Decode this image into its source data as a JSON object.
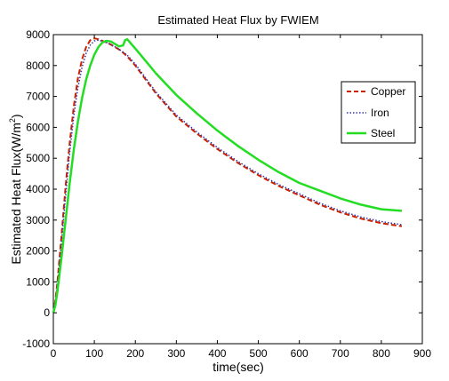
{
  "chart_data": {
    "type": "line",
    "title": "Estimated Heat Flux by FWIEM",
    "xlabel": "time(sec)",
    "ylabel": "Estimated Heat Flux(W/m",
    "ylabel_superscript": "2",
    "ylabel_suffix": ")",
    "xlim": [
      0,
      900
    ],
    "ylim": [
      -1000,
      9000
    ],
    "xticks": [
      "0",
      "100",
      "200",
      "300",
      "400",
      "500",
      "600",
      "700",
      "800",
      "900"
    ],
    "yticks": [
      "-1000",
      "0",
      "1000",
      "2000",
      "3000",
      "4000",
      "5000",
      "6000",
      "7000",
      "8000",
      "9000"
    ],
    "grid": false,
    "legend_position": "top-right",
    "series": [
      {
        "name": "Copper",
        "color": "#cc2200",
        "style": "dashed",
        "x": [
          0,
          5,
          10,
          20,
          30,
          40,
          50,
          60,
          70,
          80,
          90,
          100,
          110,
          120,
          130,
          140,
          150,
          160,
          170,
          180,
          200,
          250,
          300,
          350,
          400,
          450,
          500,
          550,
          600,
          650,
          700,
          750,
          800,
          850
        ],
        "y": [
          0,
          400,
          1000,
          2500,
          4100,
          5500,
          6700,
          7600,
          8200,
          8600,
          8820,
          8880,
          8850,
          8800,
          8740,
          8680,
          8600,
          8520,
          8420,
          8300,
          8000,
          7100,
          6350,
          5800,
          5300,
          4850,
          4450,
          4100,
          3800,
          3500,
          3250,
          3050,
          2900,
          2800
        ]
      },
      {
        "name": "Iron",
        "color": "#3333aa",
        "style": "dotted",
        "x": [
          0,
          5,
          10,
          20,
          30,
          40,
          50,
          60,
          70,
          80,
          90,
          100,
          110,
          120,
          130,
          140,
          150,
          160,
          170,
          180,
          200,
          250,
          300,
          350,
          400,
          450,
          500,
          550,
          600,
          650,
          700,
          750,
          800,
          850
        ],
        "y": [
          0,
          350,
          900,
          2300,
          3800,
          5200,
          6400,
          7300,
          7950,
          8400,
          8660,
          8800,
          8820,
          8790,
          8740,
          8680,
          8610,
          8530,
          8440,
          8340,
          8050,
          7150,
          6400,
          5850,
          5350,
          4900,
          4500,
          4150,
          3850,
          3550,
          3300,
          3100,
          2950,
          2850
        ]
      },
      {
        "name": "Steel",
        "color": "#22dd22",
        "style": "solid",
        "x": [
          0,
          5,
          10,
          20,
          30,
          40,
          50,
          60,
          70,
          80,
          90,
          100,
          110,
          120,
          130,
          140,
          150,
          160,
          170,
          175,
          180,
          185,
          190,
          200,
          225,
          250,
          300,
          350,
          400,
          450,
          500,
          550,
          600,
          650,
          700,
          750,
          800,
          850
        ],
        "y": [
          0,
          250,
          700,
          1800,
          3000,
          4200,
          5300,
          6200,
          6950,
          7550,
          8000,
          8350,
          8600,
          8750,
          8800,
          8780,
          8700,
          8620,
          8650,
          8820,
          8850,
          8780,
          8700,
          8550,
          8150,
          7750,
          7050,
          6450,
          5900,
          5400,
          4950,
          4550,
          4200,
          3950,
          3700,
          3500,
          3350,
          3300
        ]
      }
    ]
  }
}
